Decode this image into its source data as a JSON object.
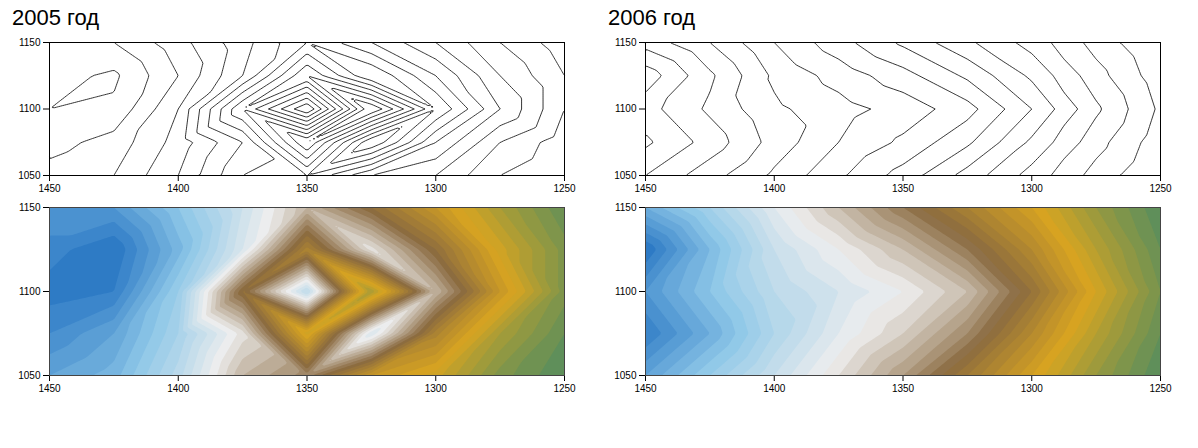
{
  "chart_data": [
    {
      "type": "contour",
      "title": "2005 год",
      "x": [
        1250,
        1275,
        1300,
        1325,
        1350,
        1375,
        1400,
        1425,
        1450
      ],
      "y": [
        1050,
        1075,
        1100,
        1125,
        1150
      ],
      "values": [
        [
          20,
          25,
          35,
          40,
          55,
          60,
          75,
          85,
          88
        ],
        [
          22,
          30,
          45,
          70,
          35,
          65,
          78,
          88,
          92
        ],
        [
          25,
          40,
          60,
          30,
          75,
          50,
          80,
          94,
          95
        ],
        [
          25,
          35,
          50,
          65,
          45,
          70,
          85,
          96,
          93
        ],
        [
          22,
          30,
          40,
          50,
          60,
          72,
          82,
          90,
          90
        ]
      ],
      "xlim": [
        1450,
        1250
      ],
      "xticks": [
        1250,
        1300,
        1350,
        1400,
        1450
      ],
      "ylim": [
        1050,
        1150
      ],
      "yticks": [
        1050,
        1100,
        1150
      ]
    },
    {
      "type": "contour",
      "title": "2006 год",
      "x": [
        1250,
        1275,
        1300,
        1325,
        1350,
        1375,
        1400,
        1425,
        1450
      ],
      "y": [
        1050,
        1075,
        1100,
        1125,
        1150
      ],
      "values": [
        [
          20,
          28,
          38,
          48,
          58,
          66,
          74,
          82,
          90
        ],
        [
          22,
          32,
          44,
          56,
          64,
          70,
          78,
          88,
          96
        ],
        [
          24,
          36,
          50,
          62,
          68,
          72,
          76,
          84,
          92
        ],
        [
          22,
          32,
          44,
          54,
          62,
          68,
          74,
          86,
          98
        ],
        [
          20,
          28,
          38,
          46,
          54,
          62,
          70,
          80,
          88
        ]
      ],
      "xlim": [
        1450,
        1250
      ],
      "xticks": [
        1250,
        1300,
        1350,
        1400,
        1450
      ],
      "ylim": [
        1050,
        1150
      ],
      "yticks": [
        1050,
        1100,
        1150
      ]
    }
  ]
}
